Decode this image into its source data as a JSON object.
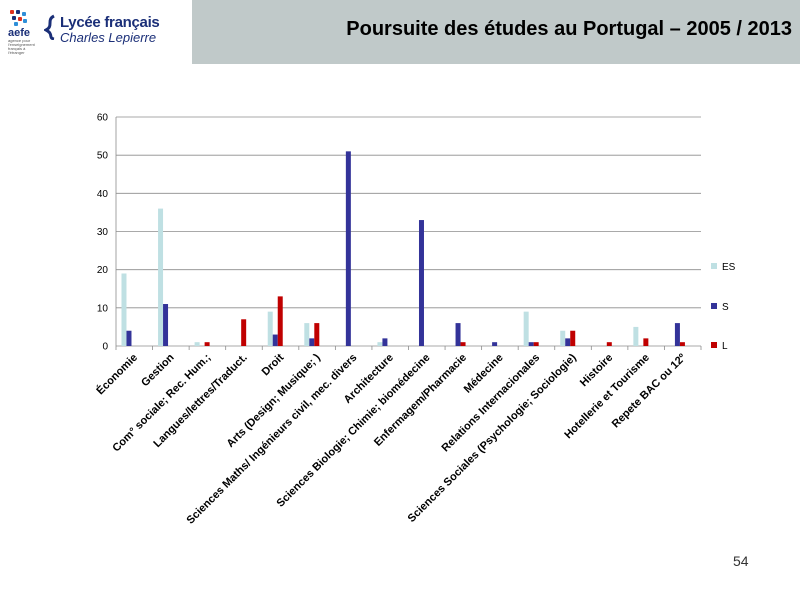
{
  "header": {
    "logo_aefe": "aefe",
    "logo_aefe_sub": "agence pour l'enseignement français à l'étranger",
    "school_name": "Lycée français",
    "school_sub": "Charles Lepierre",
    "slide_title": "Poursuite des études au Portugal – 2005 / 2013"
  },
  "colors": {
    "title_bar": "#c0c9c9",
    "ES": "#bfe0e3",
    "S": "#333399",
    "L": "#c00000",
    "brand_blue": "#1b2f78"
  },
  "page_number": "54",
  "chart_data": {
    "type": "bar",
    "title": "",
    "xlabel": "",
    "ylabel": "",
    "ylim": [
      0,
      60
    ],
    "yticks": [
      0,
      10,
      20,
      30,
      40,
      50,
      60
    ],
    "grid": true,
    "legend_position": "right",
    "categories": [
      "Économie",
      "Gestion",
      "Com° sociale; Rec. Hum.;",
      "Langues/lettres/Traduct.",
      "Droit",
      "Arts (Design; Musique; )",
      "Sciences Maths/ Ingénieurs civil, mec. divers",
      "Architecture",
      "Sciences Biologie; Chimie; biomédecine",
      "Enfermagem/Pharmacie",
      "Médecine",
      "Relations Internacionales",
      "Sciences Sociales (Psychologie; Sociologie)",
      "Histoire",
      "Hotellerie et Tourisme",
      "Repete BAC ou 12º"
    ],
    "series": [
      {
        "name": "ES",
        "values": [
          19,
          36,
          1,
          0,
          9,
          6,
          0,
          1,
          0,
          0,
          0,
          9,
          4,
          0,
          5,
          0
        ]
      },
      {
        "name": "S",
        "values": [
          4,
          11,
          0,
          0,
          3,
          2,
          51,
          2,
          33,
          6,
          1,
          1,
          2,
          0,
          0,
          6
        ]
      },
      {
        "name": "L",
        "values": [
          0,
          0,
          1,
          7,
          13,
          6,
          0,
          0,
          0,
          1,
          0,
          1,
          4,
          1,
          2,
          1
        ]
      }
    ]
  }
}
